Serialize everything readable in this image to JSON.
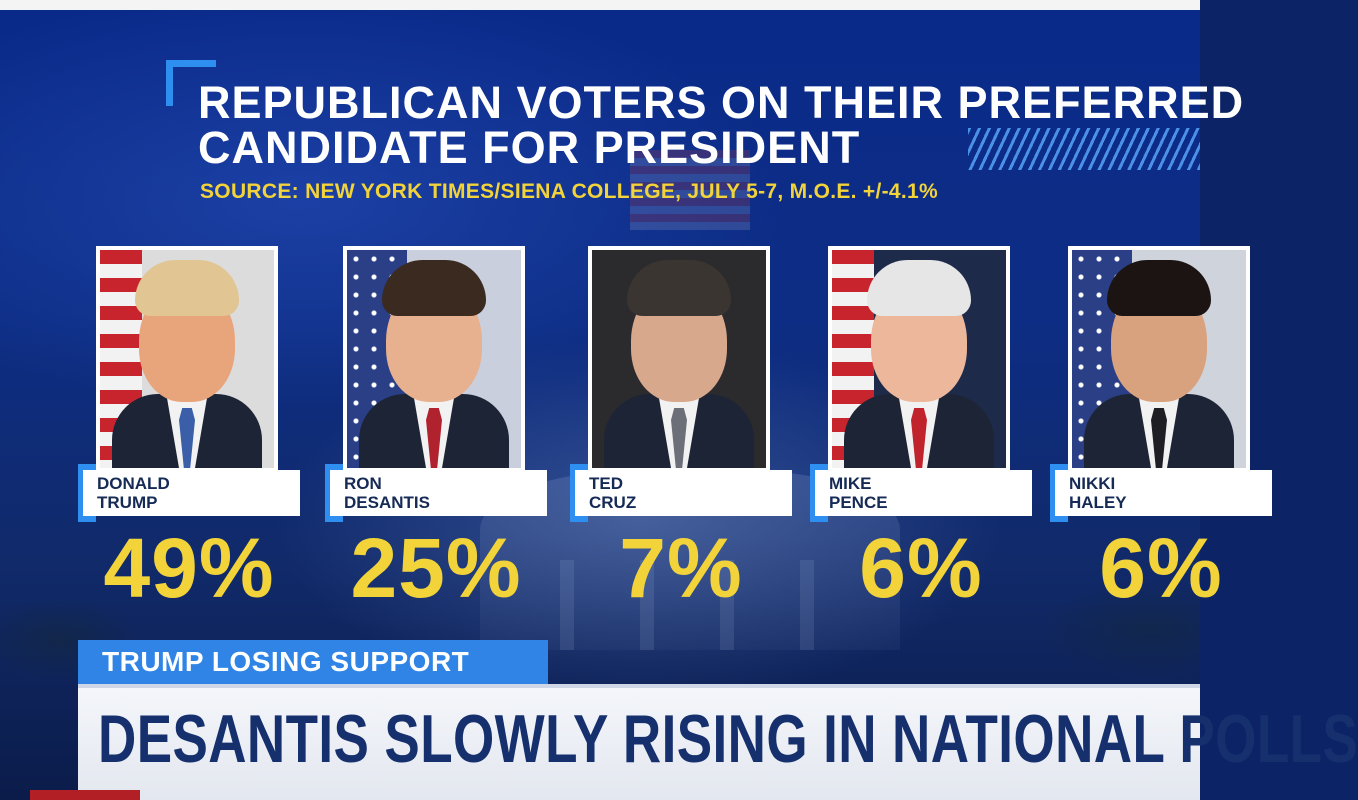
{
  "graphic": {
    "title_line1": "REPUBLICAN VOTERS ON THEIR PREFERRED",
    "title_line2": "CANDIDATE FOR PRESIDENT",
    "source": "SOURCE: NEW YORK TIMES/SIENA COLLEGE, JULY 5-7, M.O.E. +/-4.1%"
  },
  "candidates": [
    {
      "first": "DONALD",
      "last": "TRUMP",
      "pct": "49%",
      "tie_color": "#3a5fa8",
      "hair_color": "#e1c592",
      "skin": "#e8a57c"
    },
    {
      "first": "RON",
      "last": "DESANTIS",
      "pct": "25%",
      "tie_color": "#b0222d",
      "hair_color": "#3a2a20",
      "skin": "#e7b08f"
    },
    {
      "first": "TED",
      "last": "CRUZ",
      "pct": "7%",
      "tie_color": "#6c6f78",
      "hair_color": "#3b3532",
      "skin": "#d8a88c"
    },
    {
      "first": "MIKE",
      "last": "PENCE",
      "pct": "6%",
      "tie_color": "#c0232c",
      "hair_color": "#e6e6e6",
      "skin": "#ecb79a"
    },
    {
      "first": "NIKKI",
      "last": "HALEY",
      "pct": "6%",
      "tie_color": "#1e1e24",
      "hair_color": "#1b1412",
      "skin": "#d9a27e"
    }
  ],
  "lower_third": {
    "kicker": "TRUMP LOSING SUPPORT",
    "headline": "DESANTIS SLOWLY RISING IN NATIONAL POLLS"
  },
  "colors": {
    "accent_blue": "#2f8ff0",
    "percent_yellow": "#f2d33a",
    "headline_navy": "#16306e"
  }
}
